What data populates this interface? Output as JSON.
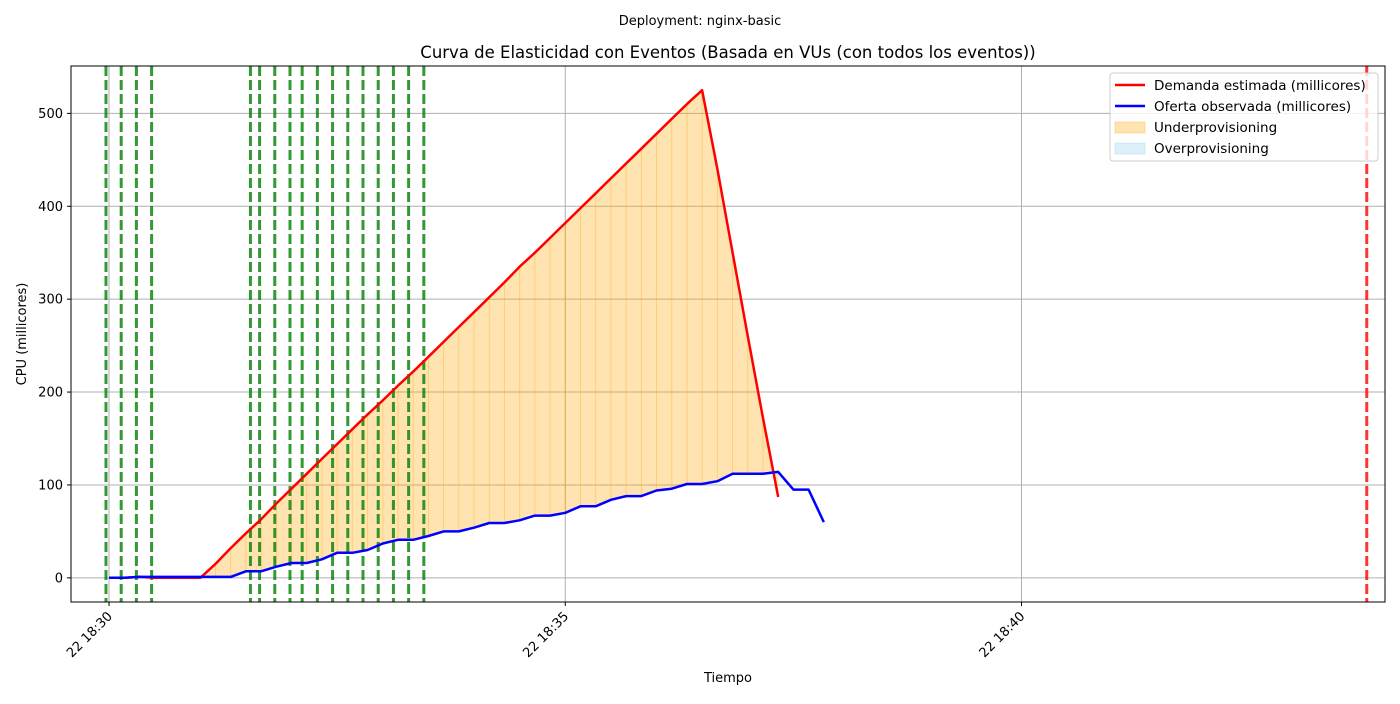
{
  "suptitle": "Deployment: nginx-basic",
  "chart_data": {
    "type": "line",
    "title": "Curva de Elasticidad con Eventos (Basada en VUs (con todos los eventos))",
    "xlabel": "Tiempo",
    "ylabel": "CPU (millicores)",
    "x_axis": {
      "type": "time",
      "start": "18:29:35",
      "end": "18:43:59",
      "ticks": [
        "22 18:30",
        "22 18:35",
        "22 18:40"
      ],
      "tick_times": [
        "18:30:00",
        "18:35:00",
        "18:40:00"
      ]
    },
    "ylim": [
      -26,
      551
    ],
    "y_ticks": [
      0,
      100,
      200,
      300,
      400,
      500
    ],
    "grid": true,
    "legend_position": "top-right",
    "colors": {
      "demand": "#ff0000",
      "supply": "#0000ff",
      "underprovisioning": "#ffa500",
      "overprovisioning": "#87ceeb",
      "scale_up_event": "#008000",
      "scale_down_event": "#ff0000",
      "grid": "#b0b0b0"
    },
    "series": [
      {
        "name": "Demanda estimada (millicores)",
        "color": "#ff0000",
        "points": [
          [
            "18:30:00",
            0
          ],
          [
            "18:30:10",
            0
          ],
          [
            "18:30:20",
            1
          ],
          [
            "18:30:30",
            0
          ],
          [
            "18:30:40",
            0
          ],
          [
            "18:30:50",
            0
          ],
          [
            "18:31:00",
            0
          ],
          [
            "18:31:10",
            15
          ],
          [
            "18:31:20",
            32
          ],
          [
            "18:31:30",
            48
          ],
          [
            "18:31:40",
            63
          ],
          [
            "18:31:50",
            80
          ],
          [
            "18:32:00",
            96
          ],
          [
            "18:32:10",
            112
          ],
          [
            "18:32:20",
            128
          ],
          [
            "18:32:30",
            144
          ],
          [
            "18:32:40",
            160
          ],
          [
            "18:32:50",
            176
          ],
          [
            "18:33:00",
            191
          ],
          [
            "18:33:10",
            207
          ],
          [
            "18:33:20",
            222
          ],
          [
            "18:33:30",
            238
          ],
          [
            "18:33:40",
            254
          ],
          [
            "18:33:50",
            270
          ],
          [
            "18:34:00",
            286
          ],
          [
            "18:34:10",
            302
          ],
          [
            "18:34:20",
            318
          ],
          [
            "18:34:30",
            335
          ],
          [
            "18:34:40",
            350
          ],
          [
            "18:34:50",
            366
          ],
          [
            "18:35:00",
            382
          ],
          [
            "18:35:10",
            398
          ],
          [
            "18:35:20",
            414
          ],
          [
            "18:35:30",
            430
          ],
          [
            "18:35:40",
            446
          ],
          [
            "18:35:50",
            462
          ],
          [
            "18:36:00",
            478
          ],
          [
            "18:36:10",
            494
          ],
          [
            "18:36:20",
            510
          ],
          [
            "18:36:30",
            525
          ],
          [
            "18:36:40",
            440
          ],
          [
            "18:36:50",
            350
          ],
          [
            "18:37:00",
            260
          ],
          [
            "18:37:10",
            172
          ],
          [
            "18:37:20",
            87
          ]
        ]
      },
      {
        "name": "Oferta observada (millicores)",
        "color": "#0000ff",
        "points": [
          [
            "18:30:00",
            0
          ],
          [
            "18:30:10",
            0
          ],
          [
            "18:30:20",
            1
          ],
          [
            "18:30:30",
            1
          ],
          [
            "18:30:40",
            1
          ],
          [
            "18:30:50",
            1
          ],
          [
            "18:31:00",
            1
          ],
          [
            "18:31:10",
            1
          ],
          [
            "18:31:20",
            1
          ],
          [
            "18:31:30",
            7
          ],
          [
            "18:31:40",
            7
          ],
          [
            "18:31:50",
            12
          ],
          [
            "18:32:00",
            16
          ],
          [
            "18:32:10",
            16
          ],
          [
            "18:32:20",
            20
          ],
          [
            "18:32:30",
            27
          ],
          [
            "18:32:40",
            27
          ],
          [
            "18:32:50",
            30
          ],
          [
            "18:33:00",
            37
          ],
          [
            "18:33:10",
            41
          ],
          [
            "18:33:20",
            41
          ],
          [
            "18:33:30",
            45
          ],
          [
            "18:33:40",
            50
          ],
          [
            "18:33:50",
            50
          ],
          [
            "18:34:00",
            54
          ],
          [
            "18:34:10",
            59
          ],
          [
            "18:34:20",
            59
          ],
          [
            "18:34:30",
            62
          ],
          [
            "18:34:40",
            67
          ],
          [
            "18:34:50",
            67
          ],
          [
            "18:35:00",
            70
          ],
          [
            "18:35:10",
            77
          ],
          [
            "18:35:20",
            77
          ],
          [
            "18:35:30",
            84
          ],
          [
            "18:35:40",
            88
          ],
          [
            "18:35:50",
            88
          ],
          [
            "18:36:00",
            94
          ],
          [
            "18:36:10",
            96
          ],
          [
            "18:36:20",
            101
          ],
          [
            "18:36:30",
            101
          ],
          [
            "18:36:40",
            104
          ],
          [
            "18:36:50",
            112
          ],
          [
            "18:37:00",
            112
          ],
          [
            "18:37:10",
            112
          ],
          [
            "18:37:20",
            114
          ],
          [
            "18:37:30",
            95
          ],
          [
            "18:37:40",
            95
          ],
          [
            "18:37:50",
            60
          ]
        ]
      }
    ],
    "fills": [
      {
        "name": "Underprovisioning",
        "color": "#ffa500"
      },
      {
        "name": "Overprovisioning",
        "color": "#87ceeb"
      }
    ],
    "events": {
      "scale_up": [
        "18:29:58",
        "18:30:08",
        "18:30:18",
        "18:30:28",
        "18:31:33",
        "18:31:39",
        "18:31:49",
        "18:31:59",
        "18:32:07",
        "18:32:17",
        "18:32:27",
        "18:32:37",
        "18:32:47",
        "18:32:57",
        "18:33:07",
        "18:33:17",
        "18:33:27"
      ],
      "scale_down": [
        "18:43:47"
      ]
    }
  }
}
